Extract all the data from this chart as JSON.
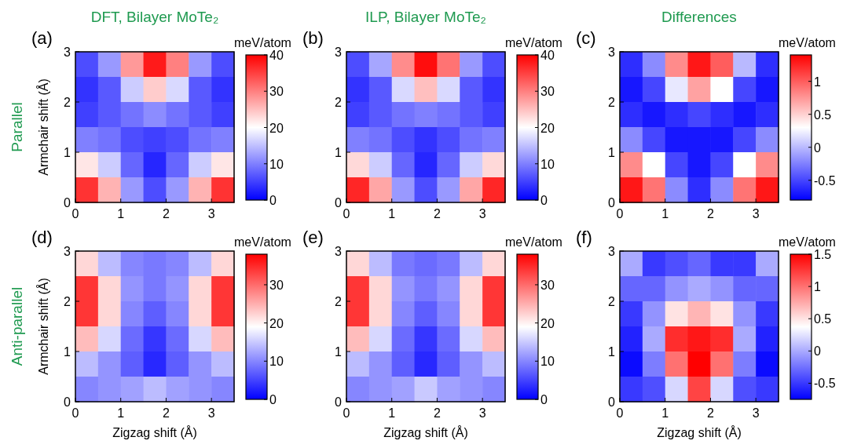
{
  "chart_data": [
    {
      "type": "heatmap",
      "title": "DFT, Bilayer MoTe₂",
      "ylabel": "Armchair shift (Å)",
      "clabel": "meV/atom",
      "annotations": [
        "(a)",
        "Parallel"
      ],
      "xlim": [
        0,
        3.5
      ],
      "xticks": [
        0,
        1,
        2,
        3
      ],
      "ylim": [
        0,
        3
      ],
      "yticks": [
        0,
        1,
        2,
        3
      ],
      "clim": [
        0,
        40
      ],
      "cticks": [
        0,
        10,
        20,
        30,
        40
      ],
      "cells": [
        [
          6,
          12,
          28,
          38,
          30,
          12,
          6
        ],
        [
          4,
          7,
          16,
          24,
          17,
          7,
          4
        ],
        [
          5,
          7,
          9,
          11,
          9,
          7,
          5
        ],
        [
          10,
          9,
          6,
          5,
          6,
          9,
          10
        ],
        [
          22,
          16,
          8,
          3,
          8,
          16,
          22
        ],
        [
          36,
          26,
          12,
          6,
          12,
          26,
          36
        ]
      ]
    },
    {
      "type": "heatmap",
      "title": "ILP, Bilayer MoTe₂",
      "clabel": "meV/atom",
      "annotations": [
        "(b)"
      ],
      "xlim": [
        0,
        3.5
      ],
      "xticks": [
        0,
        1,
        2,
        3
      ],
      "ylim": [
        0,
        3
      ],
      "yticks": [
        0,
        1,
        2,
        3
      ],
      "clim": [
        0,
        40
      ],
      "cticks": [
        0,
        10,
        20,
        30,
        40
      ],
      "cells": [
        [
          6,
          13,
          29,
          39,
          31,
          12,
          6
        ],
        [
          4,
          7,
          17,
          25,
          17,
          7,
          4
        ],
        [
          5,
          7,
          9,
          10,
          9,
          7,
          5
        ],
        [
          10,
          9,
          6,
          4,
          6,
          9,
          10
        ],
        [
          23,
          16,
          8,
          3,
          8,
          16,
          23
        ],
        [
          37,
          27,
          12,
          6,
          12,
          27,
          37
        ]
      ]
    },
    {
      "type": "heatmap",
      "title": "Differences",
      "clabel": "meV/atom",
      "annotations": [
        "(c)"
      ],
      "xlim": [
        0,
        3.5
      ],
      "xticks": [
        0,
        1,
        2,
        3
      ],
      "ylim": [
        0,
        3
      ],
      "yticks": [
        0,
        1,
        2,
        3
      ],
      "clim": [
        -0.8,
        1.4
      ],
      "cticks": [
        -0.5,
        0,
        0.5,
        1
      ],
      "cells": [
        [
          -0.6,
          -0.2,
          0.8,
          1.3,
          1.0,
          0.0,
          -0.6
        ],
        [
          -0.7,
          -0.5,
          0.2,
          0.7,
          0.3,
          -0.5,
          -0.7
        ],
        [
          -0.6,
          -0.7,
          -0.6,
          -0.5,
          -0.6,
          -0.7,
          -0.6
        ],
        [
          -0.2,
          -0.5,
          -0.7,
          -0.7,
          -0.7,
          -0.5,
          -0.2
        ],
        [
          0.8,
          0.3,
          -0.5,
          -0.7,
          -0.5,
          0.3,
          0.8
        ],
        [
          1.3,
          0.9,
          -0.2,
          -0.6,
          -0.2,
          0.9,
          1.3
        ]
      ]
    },
    {
      "type": "heatmap",
      "xlabel": "Zigzag shift (Å)",
      "ylabel": "Armchair shift (Å)",
      "clabel": "meV/atom",
      "annotations": [
        "(d)",
        "Anti-parallel"
      ],
      "xlim": [
        0,
        3.5
      ],
      "xticks": [
        0,
        1,
        2,
        3
      ],
      "ylim": [
        0,
        3
      ],
      "yticks": [
        0,
        1,
        2,
        3
      ],
      "clim": [
        0,
        38
      ],
      "cticks": [
        0,
        10,
        20,
        30
      ],
      "cells": [
        [
          22,
          14,
          10,
          9,
          10,
          14,
          22
        ],
        [
          34,
          22,
          11,
          9,
          11,
          22,
          34
        ],
        [
          34,
          22,
          10,
          7,
          10,
          22,
          34
        ],
        [
          24,
          16,
          8,
          4,
          8,
          16,
          24
        ],
        [
          14,
          11,
          7,
          3,
          7,
          11,
          14
        ],
        [
          10,
          11,
          12,
          14,
          12,
          11,
          10
        ]
      ]
    },
    {
      "type": "heatmap",
      "xlabel": "Zigzag shift (Å)",
      "clabel": "meV/atom",
      "annotations": [
        "(e)"
      ],
      "xlim": [
        0,
        3.5
      ],
      "xticks": [
        0,
        1,
        2,
        3
      ],
      "ylim": [
        0,
        3
      ],
      "yticks": [
        0,
        1,
        2,
        3
      ],
      "clim": [
        0,
        38
      ],
      "cticks": [
        0,
        10,
        20,
        30
      ],
      "cells": [
        [
          22,
          14,
          9,
          8,
          9,
          14,
          22
        ],
        [
          34,
          22,
          11,
          9,
          11,
          22,
          34
        ],
        [
          34,
          22,
          10,
          7,
          10,
          22,
          34
        ],
        [
          24,
          16,
          8,
          4,
          8,
          16,
          24
        ],
        [
          14,
          11,
          7,
          3,
          7,
          11,
          14
        ],
        [
          10,
          11,
          12,
          15,
          12,
          11,
          10
        ]
      ]
    },
    {
      "type": "heatmap",
      "xlabel": "Zigzag shift (Å)",
      "clabel": "meV/atom",
      "annotations": [
        "(f)"
      ],
      "xlim": [
        0,
        3.5
      ],
      "xticks": [
        0,
        1,
        2,
        3
      ],
      "ylim": [
        0,
        3
      ],
      "yticks": [
        0,
        1,
        2,
        3
      ],
      "clim": [
        -0.75,
        1.5
      ],
      "cticks": [
        -0.5,
        0,
        0.5,
        1,
        1.5
      ],
      "cells": [
        [
          0.0,
          -0.5,
          -0.4,
          -0.3,
          -0.5,
          -0.5,
          0.0
        ],
        [
          -0.3,
          -0.3,
          -0.1,
          0.0,
          -0.1,
          -0.3,
          -0.3
        ],
        [
          -0.5,
          -0.1,
          0.5,
          0.7,
          0.5,
          -0.1,
          -0.5
        ],
        [
          -0.6,
          0.0,
          1.3,
          1.4,
          1.3,
          0.0,
          -0.6
        ],
        [
          -0.7,
          -0.2,
          1.0,
          1.5,
          1.0,
          -0.2,
          -0.7
        ],
        [
          -0.5,
          -0.4,
          0.2,
          1.2,
          0.2,
          -0.4,
          -0.5
        ]
      ]
    }
  ]
}
